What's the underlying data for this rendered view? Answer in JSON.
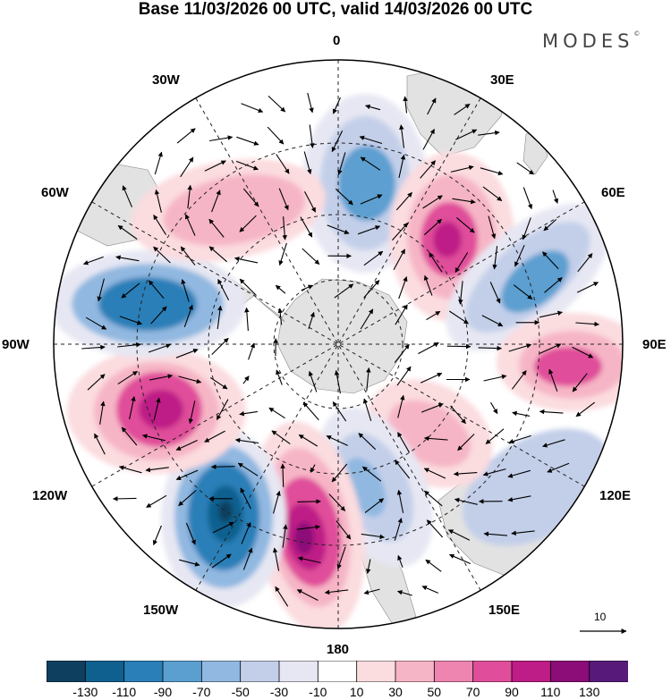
{
  "title": "Base 11/03/2026 00 UTC, valid 14/03/2026 00 UTC",
  "brand": "MODES",
  "brand_mark": "©",
  "map": {
    "projection": "south-polar-stereographic",
    "longitude_labels": {
      "lon_0": "0",
      "lon_30e": "30E",
      "lon_60e": "60E",
      "lon_90e": "90E",
      "lon_120e": "120E",
      "lon_150e": "150E",
      "lon_180": "180",
      "lon_150w": "150W",
      "lon_120w": "120W",
      "lon_90w": "90W",
      "lon_60w": "60W",
      "lon_30w": "30W"
    },
    "reference_vector": "10",
    "anomaly_centers": [
      {
        "name": "neg-30w",
        "sign": "negative",
        "value": -70
      },
      {
        "name": "pos-40e",
        "sign": "positive",
        "value": 90
      },
      {
        "name": "neg-60e",
        "sign": "negative",
        "value": -70
      },
      {
        "name": "pos-90e",
        "sign": "positive",
        "value": 90
      },
      {
        "name": "pos-135e",
        "sign": "positive",
        "value": 50
      },
      {
        "name": "neg-165e",
        "sign": "negative",
        "value": -50
      },
      {
        "name": "pos-170w",
        "sign": "positive",
        "value": 110
      },
      {
        "name": "neg-140w",
        "sign": "negative",
        "value": -110
      },
      {
        "name": "pos-110w",
        "sign": "positive",
        "value": 90
      },
      {
        "name": "neg-80w",
        "sign": "negative",
        "value": -90
      },
      {
        "name": "pos-50w",
        "sign": "positive",
        "value": 50
      }
    ]
  },
  "colorbar": {
    "ticks": [
      "-130",
      "-110",
      "-90",
      "-70",
      "-50",
      "-30",
      "-10",
      "10",
      "30",
      "50",
      "70",
      "90",
      "110",
      "130"
    ],
    "colors": [
      "#0f3f5e",
      "#10608f",
      "#2a7fb8",
      "#5b9fd0",
      "#91b8e0",
      "#c3cfe9",
      "#e6e7f3",
      "#ffffff",
      "#fbdcdf",
      "#f6b5c6",
      "#ee84b0",
      "#e04d9a",
      "#be1c86",
      "#8c0c78",
      "#571a7a"
    ]
  }
}
